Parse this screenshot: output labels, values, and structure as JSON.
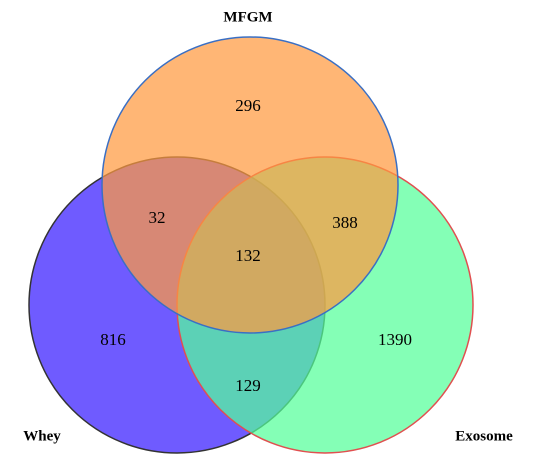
{
  "chart_data": {
    "type": "venn",
    "sets": [
      {
        "name": "MFGM",
        "color": "#ff9a40",
        "outline": "#3a6fc4"
      },
      {
        "name": "Whey",
        "color": "#6f5bff",
        "outline": "#333333"
      },
      {
        "name": "Exosome",
        "color": "#55ff9a",
        "outline": "#e05050"
      }
    ],
    "regions": [
      {
        "sets": [
          "MFGM"
        ],
        "value": 296
      },
      {
        "sets": [
          "MFGM",
          "Whey"
        ],
        "value": 32
      },
      {
        "sets": [
          "MFGM",
          "Exosome"
        ],
        "value": 388
      },
      {
        "sets": [
          "MFGM",
          "Whey",
          "Exosome"
        ],
        "value": 132
      },
      {
        "sets": [
          "Whey"
        ],
        "value": 816
      },
      {
        "sets": [
          "Exosome"
        ],
        "value": 1390
      },
      {
        "sets": [
          "Whey",
          "Exosome"
        ],
        "value": 129
      }
    ]
  }
}
